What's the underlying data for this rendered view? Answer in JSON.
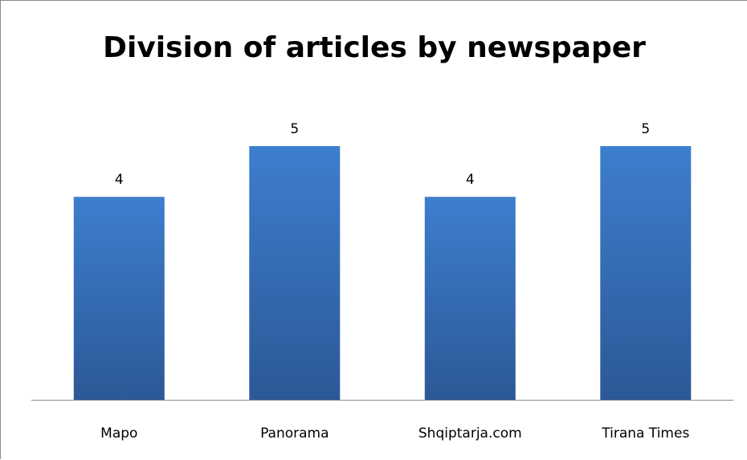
{
  "chart_data": {
    "type": "bar",
    "title": "Division of articles by newspaper",
    "categories": [
      "Mapo",
      "Panorama",
      "Shqiptarja.com",
      "Tirana Times"
    ],
    "values": [
      4,
      5,
      4,
      5
    ],
    "data_labels": [
      "4",
      "5",
      "4",
      "5"
    ],
    "xlabel": "",
    "ylabel": "",
    "ylim": [
      0,
      5
    ],
    "grid": false,
    "legend": "none",
    "bar_color_top": "#3d7ece",
    "bar_color_bottom": "#2c5896"
  }
}
